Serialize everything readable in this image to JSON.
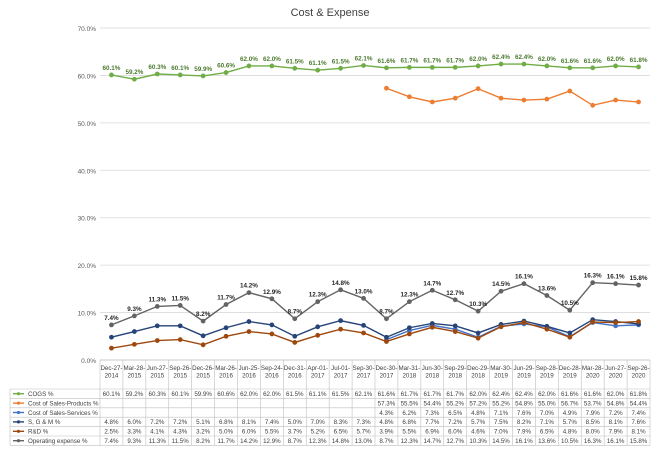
{
  "chart_data": {
    "type": "line",
    "title": "Cost & Expense",
    "xlabel": "",
    "ylabel": "",
    "ylim": [
      0,
      70
    ],
    "yticks": [
      "0.0%",
      "10.0%",
      "20.0%",
      "30.0%",
      "40.0%",
      "50.0%",
      "60.0%",
      "70.0%"
    ],
    "grid": true,
    "legend": "bottom-table",
    "categories": [
      "Dec-27-2014",
      "Mar-28-2015",
      "Jun-27-2015",
      "Sep-26-2015",
      "Dec-26-2015",
      "Mar-26-2016",
      "Jun-25-2016",
      "Sep-24-2016",
      "Dec-31-2016",
      "Apr-01-2017",
      "Jul-01-2017",
      "Sep-30-2017",
      "Dec-30-2017",
      "Mar-31-2018",
      "Jun-30-2018",
      "Sep-29-2018",
      "Dec-29-2018",
      "Mar-30-2019",
      "Jun-29-2019",
      "Sep-28-2019",
      "Dec-28-2019",
      "Mar-28-2020",
      "Jun-27-2020",
      "Sep-26-2020"
    ],
    "series": [
      {
        "name": "COGS %",
        "color": "#70ad47",
        "labels_on_chart": true,
        "values": [
          60.1,
          59.2,
          60.3,
          60.1,
          59.9,
          60.6,
          62.0,
          62.0,
          61.5,
          61.1,
          61.5,
          62.1,
          61.6,
          61.7,
          61.7,
          61.7,
          62.0,
          62.4,
          62.4,
          62.0,
          61.6,
          61.6,
          62.0,
          61.8
        ],
        "table": [
          "60.1%",
          "59.2%",
          "60.3%",
          "60.1%",
          "59.9%",
          "60.6%",
          "62.0%",
          "62.0%",
          "61.5%",
          "61.1%",
          "61.5%",
          "62.1%",
          "61.6%",
          "61.7%",
          "61.7%",
          "61.7%",
          "62.0%",
          "62.4%",
          "62.4%",
          "62.0%",
          "61.6%",
          "61.6%",
          "62.0%",
          "61.8%"
        ]
      },
      {
        "name": "Cost of Sales-Products %",
        "color": "#ed7d31",
        "labels_on_chart": false,
        "values": [
          null,
          null,
          null,
          null,
          null,
          null,
          null,
          null,
          null,
          null,
          null,
          null,
          57.3,
          55.5,
          54.4,
          55.2,
          57.2,
          55.2,
          54.8,
          55.0,
          56.7,
          53.7,
          54.8,
          54.4
        ],
        "table": [
          "",
          "",
          "",
          "",
          "",
          "",
          "",
          "",
          "",
          "",
          "",
          "",
          "57.3%",
          "55.5%",
          "54.4%",
          "55.2%",
          "57.2%",
          "55.2%",
          "54.8%",
          "55.0%",
          "56.7%",
          "53.7%",
          "54.8%",
          "54.4%"
        ]
      },
      {
        "name": "Cost of Sales-Services %",
        "color": "#4472c4",
        "labels_on_chart": false,
        "values": [
          null,
          null,
          null,
          null,
          null,
          null,
          null,
          null,
          null,
          null,
          null,
          null,
          4.3,
          6.2,
          7.3,
          6.5,
          4.8,
          7.1,
          7.6,
          7.0,
          4.9,
          7.9,
          7.2,
          7.4
        ],
        "table": [
          "",
          "",
          "",
          "",
          "",
          "",
          "",
          "",
          "",
          "",
          "",
          "",
          "4.3%",
          "6.2%",
          "7.3%",
          "6.5%",
          "4.8%",
          "7.1%",
          "7.6%",
          "7.0%",
          "4.9%",
          "7.9%",
          "7.2%",
          "7.4%"
        ]
      },
      {
        "name": "S, G & M %",
        "color": "#264478",
        "labels_on_chart": false,
        "values": [
          4.8,
          6.0,
          7.2,
          7.2,
          5.1,
          6.8,
          8.1,
          7.4,
          5.0,
          7.0,
          8.3,
          7.3,
          4.8,
          6.8,
          7.7,
          7.2,
          5.7,
          7.5,
          8.2,
          7.1,
          5.7,
          8.5,
          8.1,
          7.6
        ],
        "table": [
          "4.8%",
          "6.0%",
          "7.2%",
          "7.2%",
          "5.1%",
          "6.8%",
          "8.1%",
          "7.4%",
          "5.0%",
          "7.0%",
          "8.3%",
          "7.3%",
          "4.8%",
          "6.8%",
          "7.7%",
          "7.2%",
          "5.7%",
          "7.5%",
          "8.2%",
          "7.1%",
          "5.7%",
          "8.5%",
          "8.1%",
          "7.6%"
        ]
      },
      {
        "name": "R&D %",
        "color": "#9e480e",
        "labels_on_chart": false,
        "values": [
          2.5,
          3.3,
          4.1,
          4.3,
          3.2,
          5.0,
          6.0,
          5.5,
          3.7,
          5.2,
          6.5,
          5.7,
          3.9,
          5.5,
          6.9,
          6.0,
          4.6,
          7.0,
          7.9,
          6.5,
          4.8,
          8.0,
          7.9,
          8.1
        ],
        "table": [
          "2.5%",
          "3.3%",
          "4.1%",
          "4.3%",
          "3.2%",
          "5.0%",
          "6.0%",
          "5.5%",
          "3.7%",
          "5.2%",
          "6.5%",
          "5.7%",
          "3.9%",
          "5.5%",
          "6.9%",
          "6.0%",
          "4.6%",
          "7.0%",
          "7.9%",
          "6.5%",
          "4.8%",
          "8.0%",
          "7.9%",
          "8.1%"
        ]
      },
      {
        "name": "Operating expense %",
        "color": "#636363",
        "labels_on_chart": true,
        "values": [
          7.4,
          9.3,
          11.3,
          11.5,
          8.2,
          11.7,
          14.2,
          12.9,
          8.7,
          12.3,
          14.8,
          13.0,
          8.7,
          12.3,
          14.7,
          12.7,
          10.3,
          14.5,
          16.1,
          13.6,
          10.5,
          16.3,
          16.1,
          15.8
        ],
        "table": [
          "7.4%",
          "9.3%",
          "11.3%",
          "11.5%",
          "8.2%",
          "11.7%",
          "14.2%",
          "12.9%",
          "8.7%",
          "12.3%",
          "14.8%",
          "13.0%",
          "8.7%",
          "12.3%",
          "14.7%",
          "12.7%",
          "10.3%",
          "14.5%",
          "16.1%",
          "13.6%",
          "10.5%",
          "16.3%",
          "16.1%",
          "15.8%"
        ]
      }
    ]
  }
}
